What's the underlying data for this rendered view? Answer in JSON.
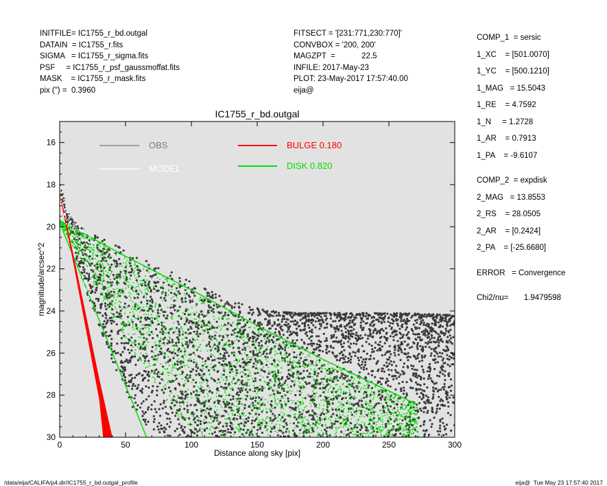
{
  "header_left": [
    "INITFILE= IC1755_r_bd.outgal",
    "DATAIN  = IC1755_r.fits",
    "SIGMA   = IC1755_r_sigma.fits",
    "PSF     = IC1755_r_psf_gaussmoffat.fits",
    "MASK    = IC1755_r_mask.fits",
    "pix (\") =  0.3960"
  ],
  "header_mid": [
    "FITSECT = '[231:771,230:770]'",
    "CONVBOX = '200, 200'",
    "MAGZPT  =            22.5",
    "INFILE: 2017-May-23",
    "PLOT: 23-May-2017 17:57:40.00",
    "eija@"
  ],
  "side_panel": [
    "COMP_1  = sersic",
    "1_XC    = [501.0070]",
    "1_YC    = [500.1210]",
    "1_MAG   = 15.5043",
    "1_RE    = 4.7592",
    "1_N     = 1.2728",
    "1_AR    = 0.7913",
    "1_PA    = -9.6107",
    "",
    "COMP_2  = expdisk",
    "2_MAG   = 13.8553",
    "2_RS    = 28.0505",
    "2_AR    = [0.2424]",
    "2_PA    = [-25.6680]",
    "",
    "ERROR   = Convergence",
    "",
    "Chi2/nu=       1.9479598"
  ],
  "footer_left": "/data/eija/CALIFA/p4.dir/IC1755_r_bd.outgal_profile",
  "footer_right": "eija@  Tue May 23 17:57:40 2017",
  "chart_data": {
    "type": "scatter",
    "title": "IC1755_r_bd.outgal",
    "xlabel": "Distance along sky [pix]",
    "ylabel": "magnitude/arcsec^2",
    "xlim": [
      0,
      300
    ],
    "ylim": [
      30,
      15
    ],
    "y_inverted": true,
    "xticks": [
      0,
      50,
      100,
      150,
      200,
      250,
      300
    ],
    "yticks": [
      16,
      18,
      20,
      22,
      24,
      26,
      28,
      30
    ],
    "grid": false,
    "background": "#e2e2e2",
    "legend_placement": "top",
    "legend": [
      {
        "label": "OBS",
        "color": "#7a7a7a"
      },
      {
        "label": "MODEL",
        "color": "#ffffff"
      },
      {
        "label": "BULGE  0.180",
        "color": "#ff0000"
      },
      {
        "label": "DISK  0.820",
        "color": "#00dd00"
      }
    ],
    "series": [
      {
        "name": "OBS",
        "color": "#3a3a3a",
        "kind": "points",
        "description_values": {
          "x": [
            0,
            2,
            5,
            10,
            15,
            20,
            30,
            40,
            60,
            80,
            100,
            120,
            140,
            160,
            180,
            200,
            230,
            260,
            300
          ],
          "y_upper": [
            17.9,
            18.4,
            19.1,
            19.7,
            20.0,
            20.2,
            20.5,
            20.8,
            21.4,
            22.0,
            22.6,
            23.2,
            23.7,
            24.0,
            24.1,
            24.1,
            24.1,
            24.1,
            24.2
          ],
          "y_lower": [
            18.1,
            18.8,
            19.8,
            21.0,
            22.0,
            23.0,
            24.8,
            26.5,
            29.2,
            30.0,
            30.0,
            30.0,
            30.0,
            30.0,
            30.0,
            30.0,
            30.0,
            30.0,
            30.0
          ]
        }
      },
      {
        "name": "MODEL",
        "color": "#ffffff",
        "kind": "band",
        "x": [
          0,
          5,
          10,
          15,
          20,
          25
        ],
        "y_upper": [
          17.8,
          18.9,
          19.7,
          20.0,
          20.2,
          20.4
        ],
        "y_lower": [
          18.4,
          19.9,
          21.0,
          22.0,
          23.2,
          24.2
        ]
      },
      {
        "name": "BULGE",
        "color": "#ff0000",
        "kind": "band",
        "x": [
          0,
          10,
          20,
          30,
          40
        ],
        "y_upper": [
          18.3,
          21.2,
          24.2,
          27.2,
          30.0
        ],
        "y_lower": [
          18.5,
          21.6,
          24.9,
          28.2,
          30.0
        ],
        "x_at_bottom": [
          33,
          41
        ]
      },
      {
        "name": "DISK",
        "color": "#00dd00",
        "kind": "band",
        "x": [
          0,
          50,
          100,
          150,
          200,
          250,
          270
        ],
        "y_upper": [
          19.7,
          21.4,
          23.0,
          24.7,
          26.3,
          27.8,
          28.4
        ],
        "y_lower": [
          19.8,
          25.4,
          30.0,
          30.0,
          30.0,
          30.0,
          30.0
        ],
        "x_at_bottom": [
          66,
          270
        ]
      }
    ]
  }
}
